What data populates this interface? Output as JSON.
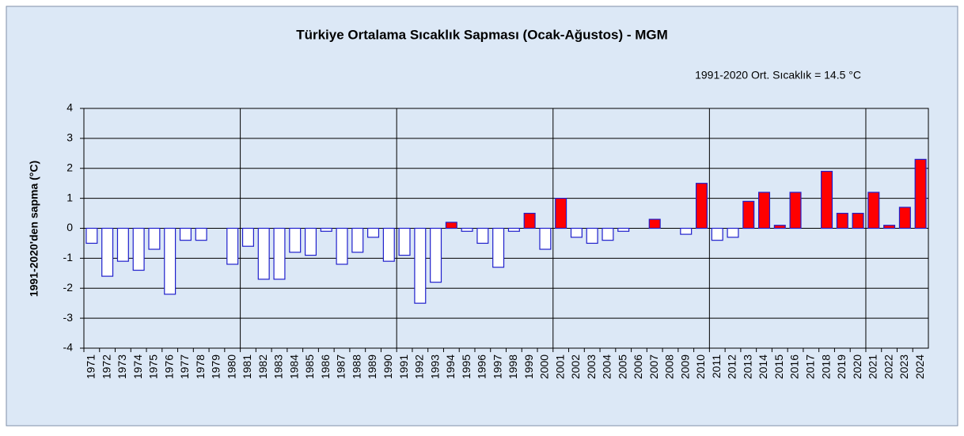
{
  "chart_data": {
    "type": "bar",
    "title": "Türkiye Ortalama Sıcaklık Sapması (Ocak-Ağustos) - MGM",
    "annotation": "1991-2020 Ort. Sıcaklık = 14.5 °C",
    "y_label": "1991-2020'den sapma (°C)",
    "categories": [
      "1971",
      "1972",
      "1973",
      "1974",
      "1975",
      "1976",
      "1977",
      "1978",
      "1979",
      "1980",
      "1981",
      "1982",
      "1983",
      "1984",
      "1985",
      "1986",
      "1987",
      "1988",
      "1989",
      "1990",
      "1991",
      "1992",
      "1993",
      "1994",
      "1995",
      "1996",
      "1997",
      "1998",
      "1999",
      "2000",
      "2001",
      "2002",
      "2003",
      "2004",
      "2005",
      "2006",
      "2007",
      "2008",
      "2009",
      "2010",
      "2011",
      "2012",
      "2013",
      "2014",
      "2015",
      "2016",
      "2017",
      "2018",
      "2019",
      "2020",
      "2021",
      "2022",
      "2023",
      "2024"
    ],
    "values": [
      -0.5,
      -1.6,
      -1.1,
      -1.4,
      -0.7,
      -2.2,
      -0.4,
      -0.4,
      0,
      -1.2,
      -0.6,
      -1.7,
      -1.7,
      -0.8,
      -0.9,
      -0.1,
      -1.2,
      -0.8,
      -0.3,
      -1.1,
      -0.9,
      -2.5,
      -1.8,
      0.2,
      -0.1,
      -0.5,
      -1.3,
      -0.1,
      0.5,
      -0.7,
      1.0,
      -0.3,
      -0.5,
      -0.4,
      -0.1,
      0,
      0.3,
      0,
      -0.2,
      1.5,
      -0.4,
      -0.3,
      0.9,
      1.2,
      0.1,
      1.2,
      0,
      1.9,
      0.5,
      0.5,
      1.2,
      0.1,
      0.7,
      2.3
    ],
    "positive_color": "#ff0000",
    "negative_color": "#ffffff",
    "border_color": "#1f1fcc",
    "ylim": [
      -4,
      4
    ],
    "yticks": [
      -4,
      -3,
      -2,
      -1,
      0,
      1,
      2,
      3,
      4
    ],
    "grid": true
  }
}
